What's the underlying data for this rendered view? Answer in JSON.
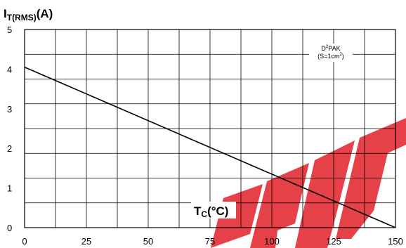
{
  "chart_data": {
    "type": "line",
    "ylabel": {
      "main": "I",
      "sub": "T(RMS)",
      "unit": "(A)"
    },
    "xlabel": {
      "main": "T",
      "sub": "C",
      "unit": "(°C)"
    },
    "xlim": [
      0,
      150
    ],
    "ylim": [
      0,
      5
    ],
    "xticks": [
      "0",
      "25",
      "50",
      "75",
      "100",
      "125",
      "150"
    ],
    "yticks": [
      "0",
      "1",
      "2",
      "3",
      "4",
      "5"
    ],
    "grid": true,
    "annotation": {
      "line1_pre": "D",
      "line1_sup": "2",
      "line1_post": "PAK",
      "line2_pre": "(S=1cm",
      "line2_sup": "2",
      "line2_post": ")"
    },
    "series": [
      {
        "x": [
          0,
          150
        ],
        "y": [
          4.05,
          0
        ]
      }
    ],
    "colors": {
      "line": "#000000",
      "grid": "#000000",
      "watermark": "#e2323a"
    }
  }
}
